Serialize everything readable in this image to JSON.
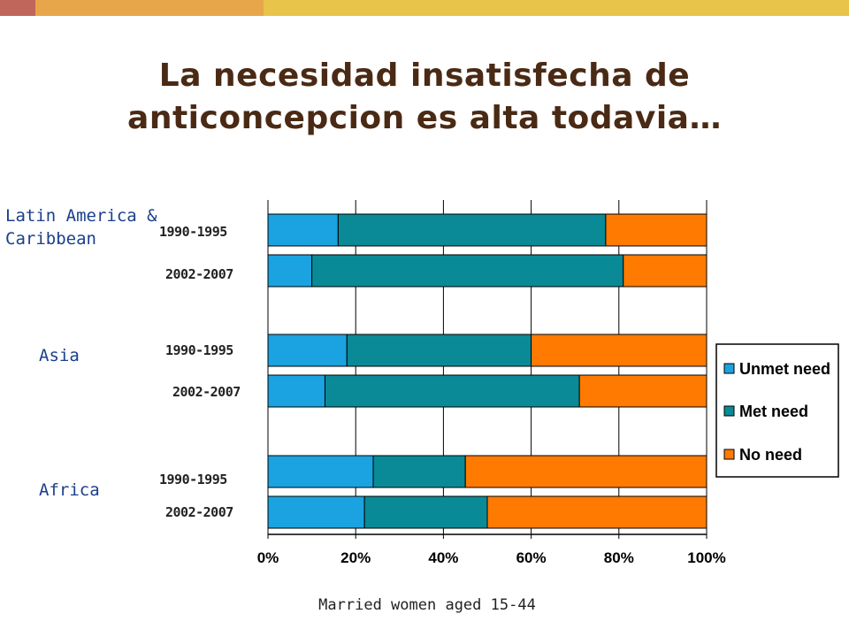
{
  "colors": {
    "bar_a": "#c0665a",
    "bar_b": "#e8a64a",
    "bar_c": "#e8c44a",
    "title": "#4a2a14",
    "unmet": "#1aa3e0",
    "met": "#0a8a96",
    "no_need": "#ff7a00"
  },
  "title": {
    "line1": "La necesidad insatisfecha de",
    "line2": "anticoncepcion es alta todavia…"
  },
  "regions": {
    "latam_line1": "Latin America &",
    "latam_line2": "Caribbean",
    "asia": "Asia",
    "africa": "Africa"
  },
  "periods": {
    "latam_1": "1990-1995",
    "latam_2": "2002-2007",
    "asia_1": "1990-1995",
    "asia_2": "2002-2007",
    "africa_1": "1990-1995",
    "africa_2": "2002-2007"
  },
  "footer": "Married women aged 15-44",
  "chart_data": {
    "type": "bar",
    "orientation": "horizontal",
    "stacked": true,
    "categories": [
      "Latin America & Caribbean 1990-1995",
      "Latin America & Caribbean 2002-2007",
      "Asia 1990-1995",
      "Asia 2002-2007",
      "Africa 1990-1995",
      "Africa 2002-2007"
    ],
    "series": [
      {
        "name": "Unmet need",
        "values": [
          16,
          10,
          18,
          13,
          24,
          22
        ]
      },
      {
        "name": "Met need",
        "values": [
          61,
          71,
          42,
          58,
          21,
          28
        ]
      },
      {
        "name": "No need",
        "values": [
          23,
          19,
          40,
          29,
          55,
          50
        ]
      }
    ],
    "xlim": [
      0,
      100
    ],
    "x_ticks": [
      "0%",
      "20%",
      "40%",
      "60%",
      "80%",
      "100%"
    ],
    "grid": true,
    "legend_position": "right"
  }
}
